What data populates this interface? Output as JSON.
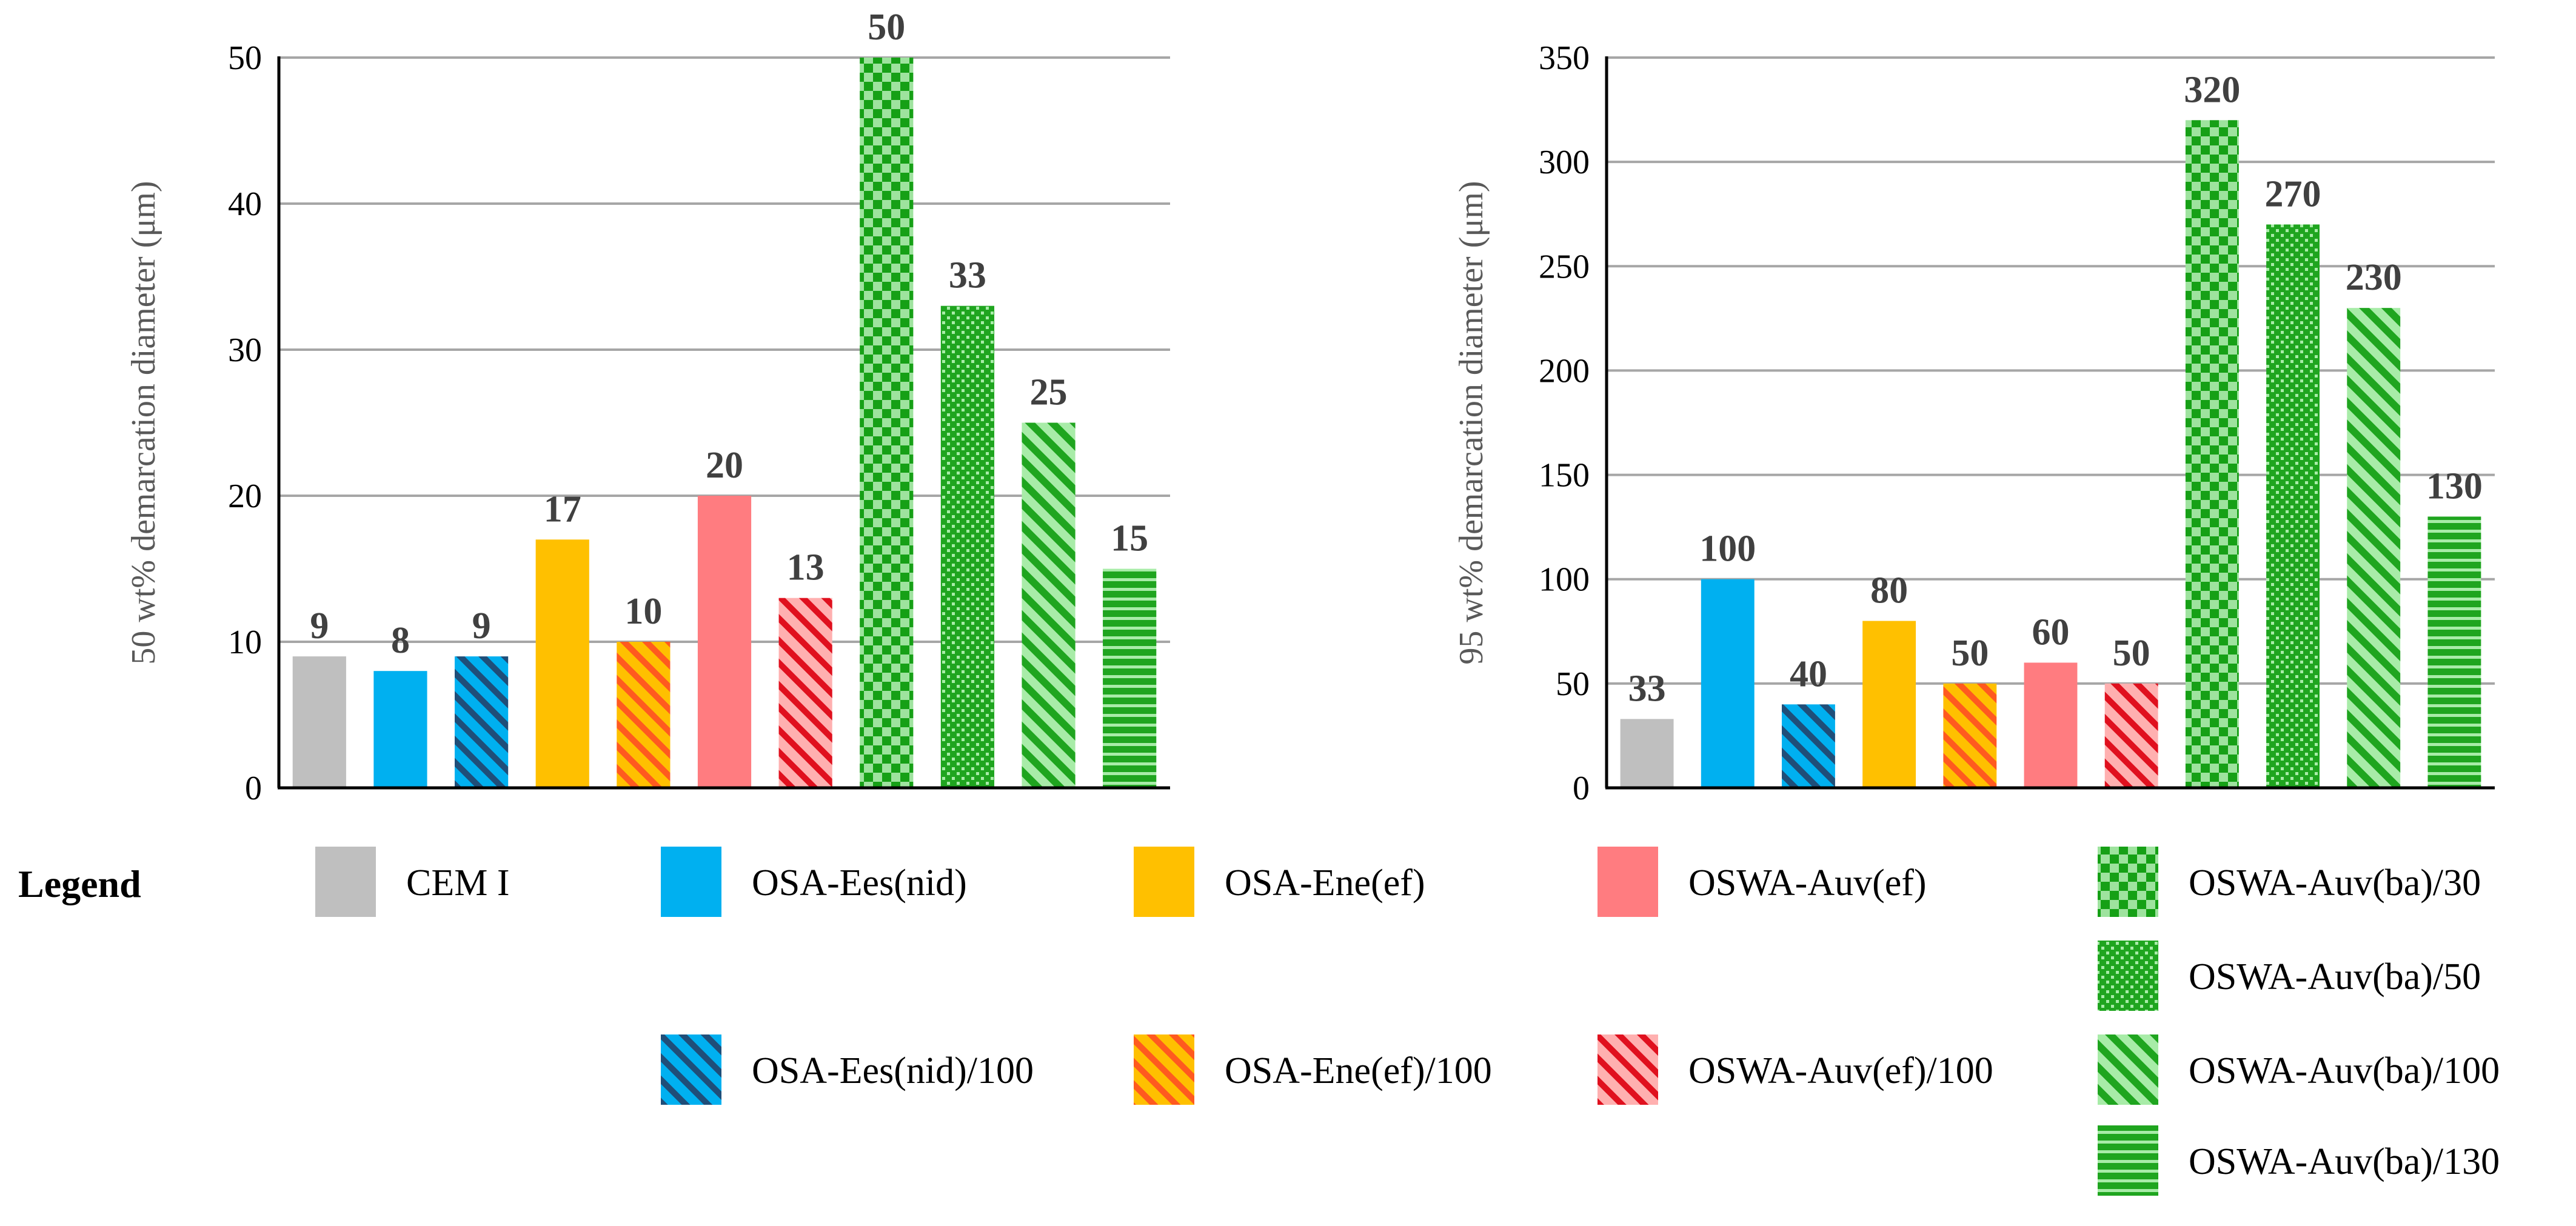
{
  "chart_data": [
    {
      "type": "bar",
      "ylabel": "50 wt% demarcation diameter  (μm)",
      "ylim": [
        0,
        50
      ],
      "yticks": [
        0,
        10,
        20,
        30,
        40,
        50
      ],
      "grid": true,
      "series": [
        {
          "name": "CEM I",
          "value": 9
        },
        {
          "name": "OSA-Ees(nid)",
          "value": 8
        },
        {
          "name": "OSA-Ees(nid)/100",
          "value": 9
        },
        {
          "name": "OSA-Ene(ef)",
          "value": 17
        },
        {
          "name": "OSA-Ene(ef)/100",
          "value": 10
        },
        {
          "name": "OSWA-Auv(ef)",
          "value": 20
        },
        {
          "name": "OSWA-Auv(ef)/100",
          "value": 13
        },
        {
          "name": "OSWA-Auv(ba)/30",
          "value": 50
        },
        {
          "name": "OSWA-Auv(ba)/50",
          "value": 33
        },
        {
          "name": "OSWA-Auv(ba)/100",
          "value": 25
        },
        {
          "name": "OSWA-Auv(ba)/130",
          "value": 15
        }
      ]
    },
    {
      "type": "bar",
      "ylabel": "95 wt% demarcation diameter  (μm)",
      "ylim": [
        0,
        350
      ],
      "yticks": [
        0,
        50,
        100,
        150,
        200,
        250,
        300,
        350
      ],
      "grid": true,
      "series": [
        {
          "name": "CEM I",
          "value": 33
        },
        {
          "name": "OSA-Ees(nid)",
          "value": 100
        },
        {
          "name": "OSA-Ees(nid)/100",
          "value": 40
        },
        {
          "name": "OSA-Ene(ef)",
          "value": 80
        },
        {
          "name": "OSA-Ene(ef)/100",
          "value": 50
        },
        {
          "name": "OSWA-Auv(ef)",
          "value": 60
        },
        {
          "name": "OSWA-Auv(ef)/100",
          "value": 50
        },
        {
          "name": "OSWA-Auv(ba)/30",
          "value": 320
        },
        {
          "name": "OSWA-Auv(ba)/50",
          "value": 270
        },
        {
          "name": "OSWA-Auv(ba)/100",
          "value": 230
        },
        {
          "name": "OSWA-Auv(ba)/130",
          "value": 130
        }
      ]
    }
  ],
  "legend": {
    "title": "Legend",
    "items": [
      {
        "label": "CEM I",
        "color": "#bfbfbf",
        "pattern": "solid"
      },
      {
        "label": "OSA-Ees(nid)",
        "color": "#00b0f0",
        "pattern": "solid"
      },
      {
        "label": "OSA-Ene(ef)",
        "color": "#ffc000",
        "pattern": "solid"
      },
      {
        "label": "OSWA-Auv(ef)",
        "color": "#ff7c80",
        "pattern": "solid"
      },
      {
        "label": "OSWA-Auv(ba)/30",
        "color": "#2ca02c",
        "pattern": "checker"
      },
      {
        "label": "OSWA-Auv(ba)/50",
        "color": "#2ca02c",
        "pattern": "dots"
      },
      {
        "label": "OSA-Ees(nid)/100",
        "color": "#00b0f0",
        "pattern": "diag"
      },
      {
        "label": "OSA-Ene(ef)/100",
        "color": "#ffc000",
        "pattern": "diag"
      },
      {
        "label": "OSWA-Auv(ef)/100",
        "color": "#ff7c80",
        "pattern": "diag"
      },
      {
        "label": "OSWA-Auv(ba)/100",
        "color": "#2ca02c",
        "pattern": "diag"
      },
      {
        "label": "OSWA-Auv(ba)/130",
        "color": "#2ca02c",
        "pattern": "hstripe"
      }
    ]
  }
}
